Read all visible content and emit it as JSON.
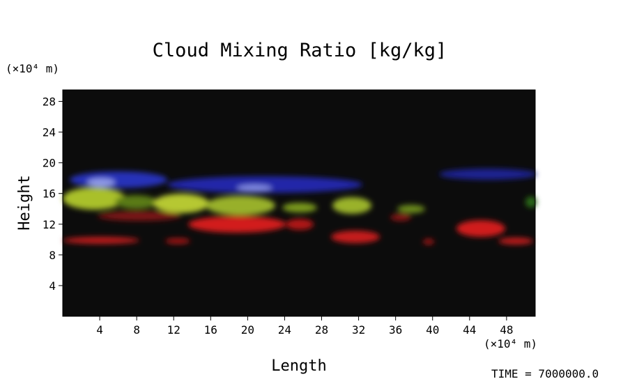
{
  "chart_data": {
    "type": "volume",
    "title": "Cloud Mixing Ratio [kg/kg]",
    "x_label": "Length",
    "y_label": "Height",
    "x_unit": "(×10⁴ m)",
    "y_unit": "(×10⁴ m)",
    "annotation": "TIME = 7000000.0",
    "xlim": [
      0,
      51.1
    ],
    "ylim": [
      0,
      29.5
    ],
    "xticks": [
      4,
      8,
      12,
      16,
      20,
      24,
      28,
      32,
      36,
      40,
      44,
      48
    ],
    "yticks": [
      4,
      8,
      12,
      16,
      20,
      24,
      28
    ]
  }
}
